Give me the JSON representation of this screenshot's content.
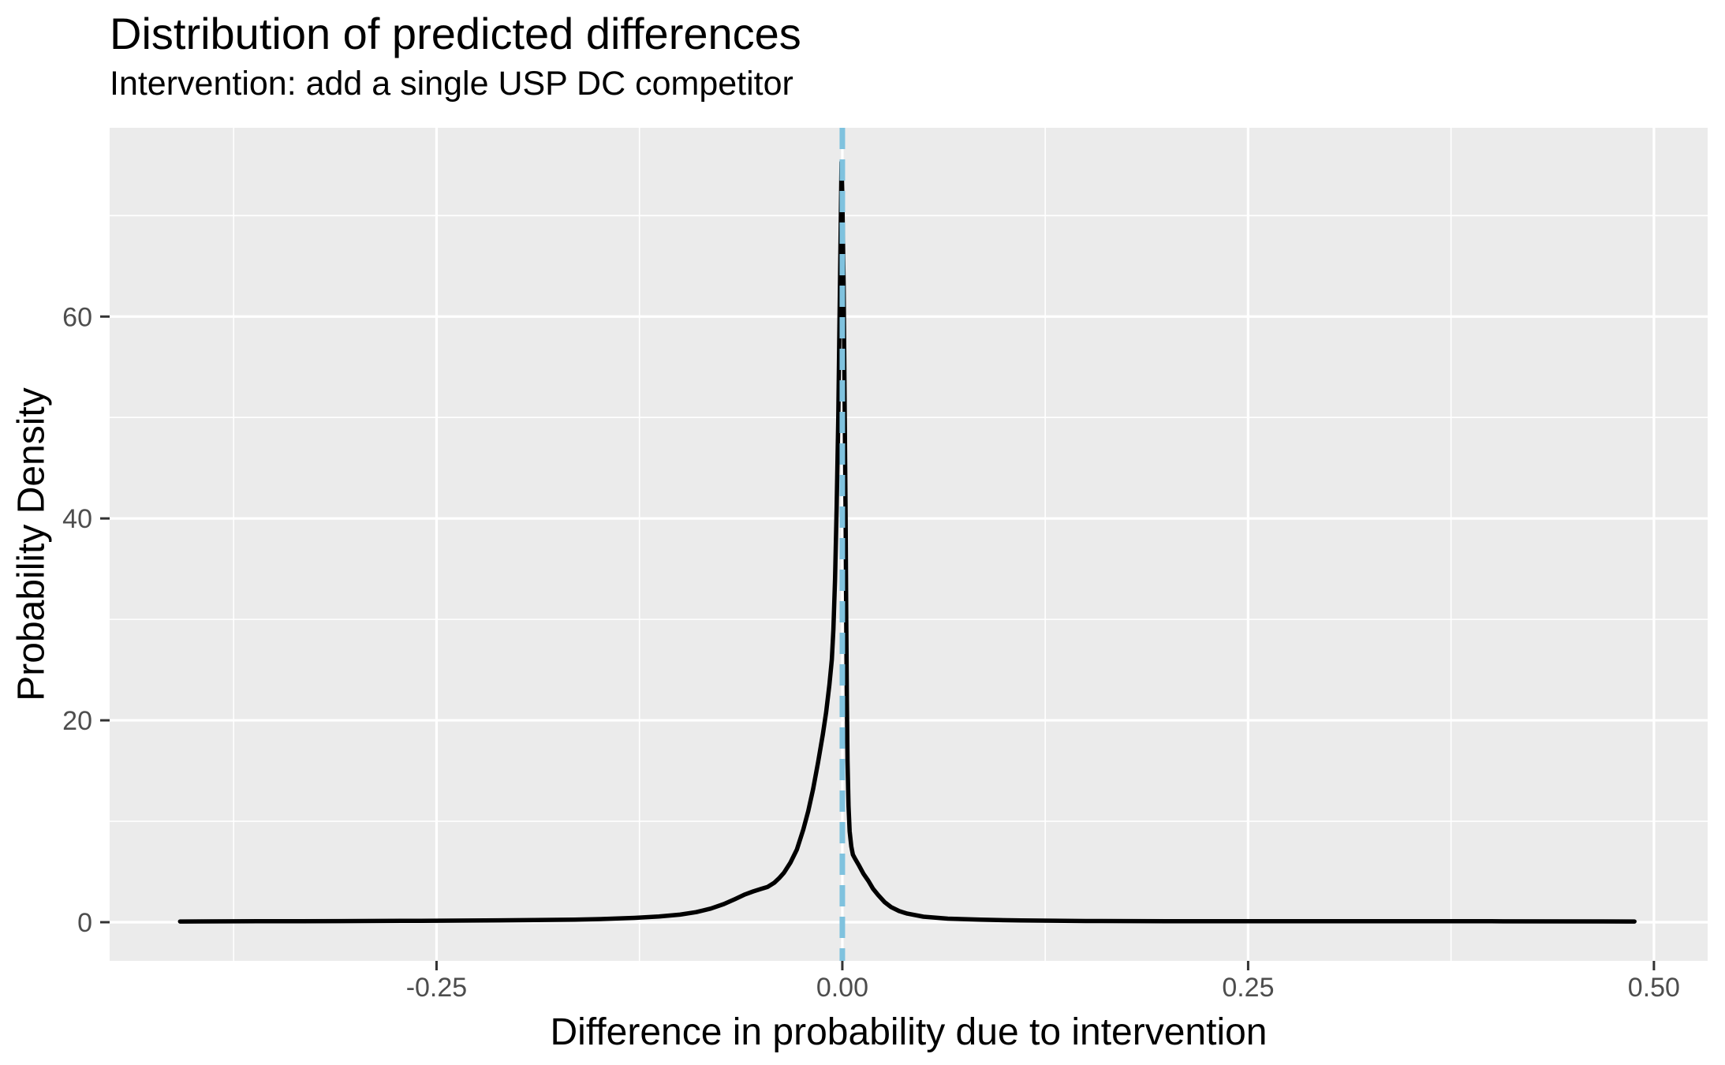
{
  "chart_data": {
    "type": "line",
    "subtype": "density",
    "title": "Distribution of predicted differences",
    "subtitle": "Intervention: add a single USP DC competitor",
    "xlabel": "Difference in probability due to intervention",
    "ylabel": "Probability Density",
    "xlim": [
      -0.4514,
      0.5331
    ],
    "ylim": [
      -3.83,
      78.7
    ],
    "x_ticks": [
      {
        "value": -0.25,
        "label": "-0.25"
      },
      {
        "value": 0.0,
        "label": "0.00"
      },
      {
        "value": 0.25,
        "label": "0.25"
      },
      {
        "value": 0.5,
        "label": "0.50"
      }
    ],
    "y_ticks": [
      {
        "value": 0,
        "label": "0"
      },
      {
        "value": 20,
        "label": "20"
      },
      {
        "value": 40,
        "label": "40"
      },
      {
        "value": 60,
        "label": "60"
      }
    ],
    "x_minor": [
      -0.375,
      -0.125,
      0.125,
      0.375
    ],
    "y_minor": [
      10,
      30,
      50,
      70
    ],
    "grid": "major-and-minor",
    "legend": "none",
    "panel_bg": "#EBEBEB",
    "grid_color": "#FFFFFF",
    "tick_label_color": "#4D4D4D",
    "tick_mark_color": "#333333",
    "vline": {
      "x": 0.0,
      "color": "#7FC2DE",
      "style": "dashed",
      "note": "reference line at zero"
    },
    "series": [
      {
        "name": "density of predicted differences",
        "color": "#000000",
        "points": [
          [
            -0.408,
            0.07
          ],
          [
            -0.36,
            0.09
          ],
          [
            -0.31,
            0.11
          ],
          [
            -0.26,
            0.14
          ],
          [
            -0.22,
            0.17
          ],
          [
            -0.19,
            0.21
          ],
          [
            -0.165,
            0.26
          ],
          [
            -0.145,
            0.33
          ],
          [
            -0.128,
            0.43
          ],
          [
            -0.113,
            0.56
          ],
          [
            -0.1,
            0.75
          ],
          [
            -0.09,
            1.0
          ],
          [
            -0.081,
            1.35
          ],
          [
            -0.073,
            1.8
          ],
          [
            -0.066,
            2.3
          ],
          [
            -0.06,
            2.75
          ],
          [
            -0.055,
            3.05
          ],
          [
            -0.05,
            3.3
          ],
          [
            -0.046,
            3.5
          ],
          [
            -0.042,
            3.9
          ],
          [
            -0.039,
            4.35
          ],
          [
            -0.036,
            4.9
          ],
          [
            -0.032,
            5.9
          ],
          [
            -0.028,
            7.2
          ],
          [
            -0.024,
            9.2
          ],
          [
            -0.021,
            11.0
          ],
          [
            -0.018,
            13.2
          ],
          [
            -0.015,
            15.8
          ],
          [
            -0.012,
            18.6
          ],
          [
            -0.01,
            20.8
          ],
          [
            -0.008,
            23.5
          ],
          [
            -0.0065,
            26.0
          ],
          [
            -0.0055,
            29.0
          ],
          [
            -0.0045,
            34.0
          ],
          [
            -0.0035,
            41.0
          ],
          [
            -0.0025,
            50.0
          ],
          [
            -0.0017,
            60.0
          ],
          [
            -0.001,
            69.0
          ],
          [
            -0.0005,
            75.3
          ],
          [
            0.0,
            72.0
          ],
          [
            0.0008,
            63.0
          ],
          [
            0.0015,
            50.0
          ],
          [
            0.002,
            40.0
          ],
          [
            0.0024,
            30.0
          ],
          [
            0.0028,
            22.0
          ],
          [
            0.0032,
            16.0
          ],
          [
            0.0038,
            11.5
          ],
          [
            0.0045,
            9.0
          ],
          [
            0.0055,
            7.5
          ],
          [
            0.0065,
            6.7
          ],
          [
            0.0078,
            6.3
          ],
          [
            0.01,
            5.7
          ],
          [
            0.013,
            4.8
          ],
          [
            0.016,
            4.1
          ],
          [
            0.019,
            3.3
          ],
          [
            0.022,
            2.7
          ],
          [
            0.026,
            2.0
          ],
          [
            0.03,
            1.5
          ],
          [
            0.035,
            1.1
          ],
          [
            0.04,
            0.85
          ],
          [
            0.05,
            0.55
          ],
          [
            0.065,
            0.35
          ],
          [
            0.085,
            0.25
          ],
          [
            0.11,
            0.17
          ],
          [
            0.15,
            0.12
          ],
          [
            0.2,
            0.1
          ],
          [
            0.3,
            0.09
          ],
          [
            0.4,
            0.09
          ],
          [
            0.488,
            0.07
          ]
        ]
      }
    ]
  }
}
